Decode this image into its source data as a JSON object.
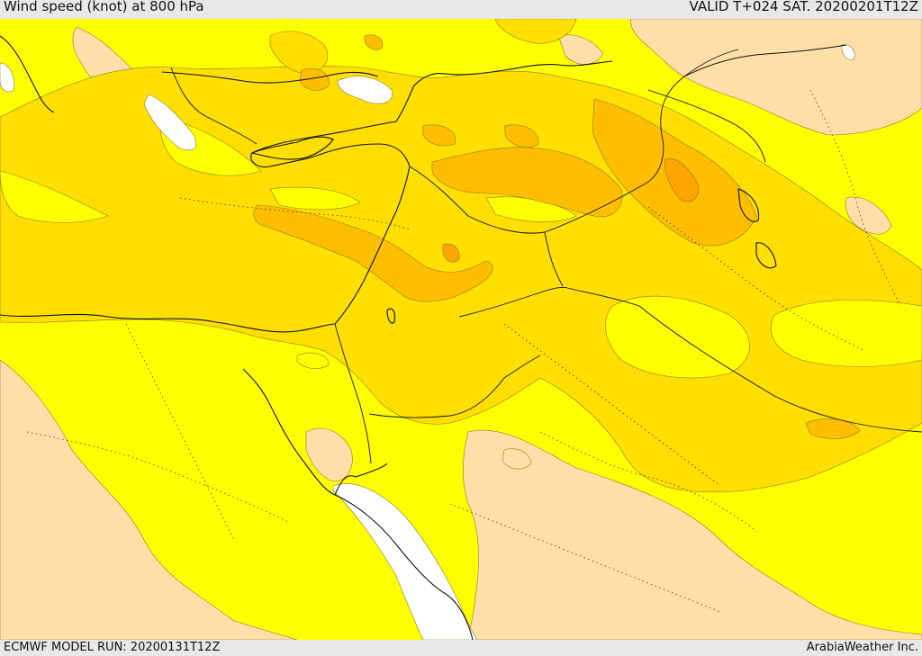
{
  "header": {
    "title": "Wind speed (knot) at 800 hPa",
    "valid": "VALID T+024 SAT. 20200201T12Z"
  },
  "footer": {
    "model_run": "ECMWF MODEL RUN: 20200131T12Z",
    "credit": "ArabiaWeather Inc."
  },
  "colors": {
    "frame": "#e8e8e8",
    "speed_lowest": "#ffdfa8",
    "speed_low": "#ffff00",
    "speed_mid": "#ffdf00",
    "speed_high": "#ffbf00",
    "speed_highest": "#ffa500",
    "sea_white": "#ffffff",
    "coastline": "#111111"
  }
}
